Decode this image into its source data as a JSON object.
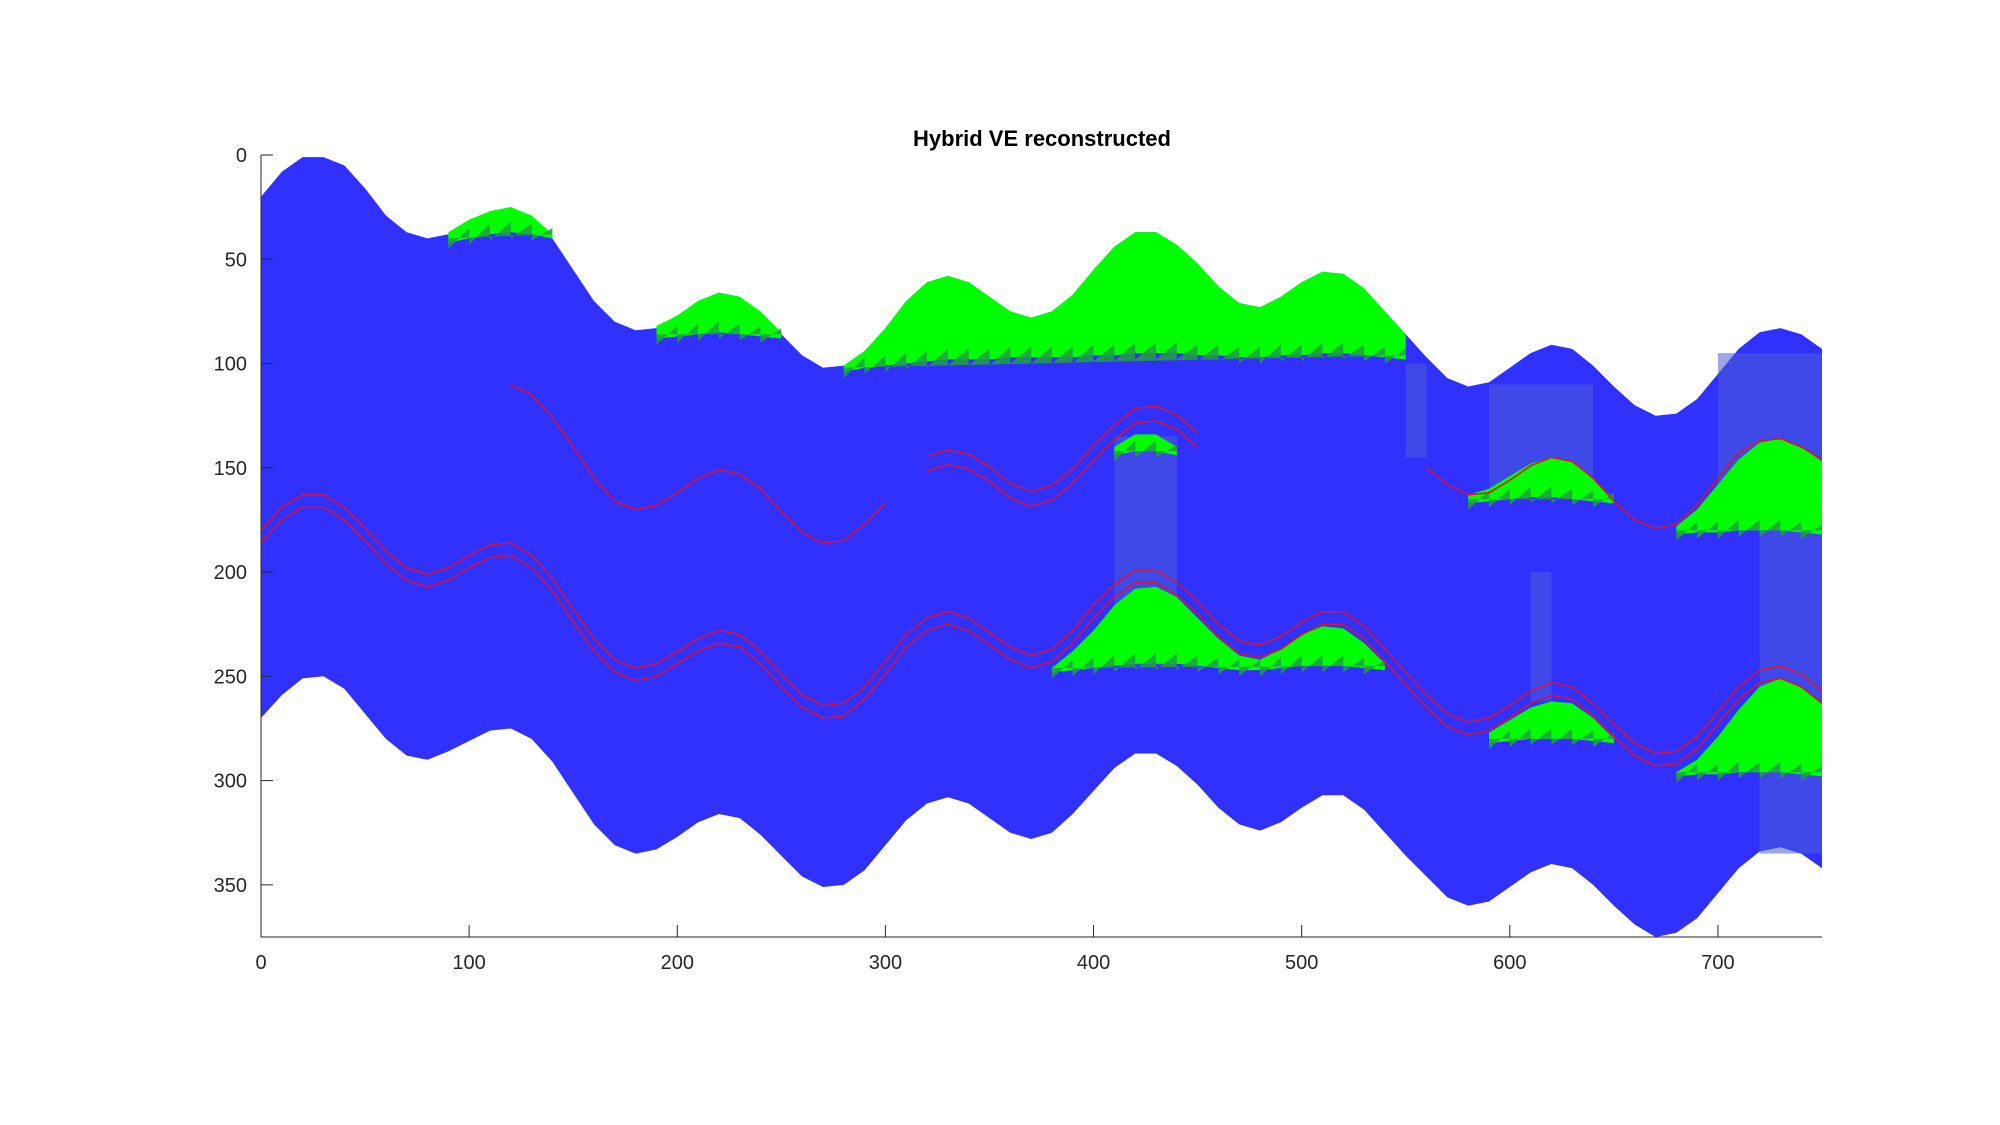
{
  "chart_data": {
    "type": "area",
    "title": "Hybrid VE reconstructed",
    "xlabel": "",
    "ylabel": "",
    "xlim": [
      0,
      750
    ],
    "ylim": [
      0,
      375
    ],
    "y_reversed": true,
    "x_ticks": [
      0,
      100,
      200,
      300,
      400,
      500,
      600,
      700
    ],
    "y_ticks": [
      0,
      50,
      100,
      150,
      200,
      250,
      300,
      350
    ],
    "grid": false,
    "colors": {
      "domain": "#3030ff",
      "plume": "#00ff00",
      "plume_edge": "#20a040",
      "column_overlay": "#4a5fd6",
      "horizon_line": "#e01030",
      "axes": "#262626"
    },
    "x": [
      0,
      10,
      20,
      30,
      40,
      50,
      60,
      70,
      80,
      90,
      100,
      110,
      120,
      130,
      140,
      150,
      160,
      170,
      180,
      190,
      200,
      210,
      220,
      230,
      240,
      250,
      260,
      270,
      280,
      290,
      300,
      310,
      320,
      330,
      340,
      350,
      360,
      370,
      380,
      390,
      400,
      410,
      420,
      430,
      440,
      450,
      460,
      470,
      480,
      490,
      500,
      510,
      520,
      530,
      540,
      550,
      560,
      570,
      580,
      590,
      600,
      610,
      620,
      630,
      640,
      650,
      660,
      670,
      680,
      690,
      700,
      710,
      720,
      730,
      740,
      750
    ],
    "top_surface": [
      20,
      8,
      1,
      1,
      5,
      16,
      29,
      37,
      40,
      38,
      33,
      27,
      25,
      30,
      40,
      55,
      70,
      80,
      84,
      83,
      77,
      70,
      66,
      68,
      76,
      86,
      96,
      102,
      101,
      94,
      83,
      70,
      61,
      58,
      61,
      68,
      75,
      78,
      75,
      67,
      55,
      44,
      37,
      37,
      43,
      52,
      63,
      71,
      73,
      68,
      61,
      56,
      57,
      64,
      75,
      86,
      97,
      107,
      111,
      109,
      102,
      95,
      91,
      93,
      101,
      111,
      120,
      125,
      124,
      117,
      105,
      93,
      85,
      83,
      86,
      93
    ],
    "bottom_surface": [
      270,
      259,
      251,
      250,
      256,
      268,
      280,
      288,
      290,
      286,
      281,
      276,
      275,
      280,
      291,
      306,
      321,
      331,
      335,
      333,
      327,
      320,
      316,
      318,
      326,
      336,
      346,
      351,
      350,
      343,
      331,
      319,
      311,
      308,
      311,
      318,
      325,
      328,
      325,
      316,
      305,
      294,
      287,
      287,
      293,
      302,
      313,
      321,
      324,
      320,
      313,
      307,
      307,
      314,
      325,
      336,
      346,
      356,
      360,
      358,
      351,
      344,
      340,
      342,
      350,
      360,
      369,
      375,
      373,
      366,
      354,
      342,
      334,
      332,
      335,
      342
    ],
    "plumes": [
      {
        "x": [
          90,
          100,
          110,
          120,
          130,
          140
        ],
        "top": [
          37,
          31,
          27,
          25,
          29,
          38
        ],
        "bottom": [
          42,
          40,
          38,
          37,
          38,
          40
        ]
      },
      {
        "x": [
          190,
          200,
          210,
          220,
          230,
          240,
          250
        ],
        "top": [
          82,
          77,
          70,
          66,
          68,
          75,
          85
        ],
        "bottom": [
          88,
          87,
          86,
          85,
          86,
          87,
          88
        ]
      },
      {
        "x": [
          280,
          290,
          300,
          310,
          320,
          330,
          340,
          350,
          360,
          370,
          380,
          390,
          400,
          410,
          420,
          430,
          440,
          450,
          460,
          470,
          480,
          490,
          500,
          510,
          520,
          530,
          540,
          550
        ],
        "top": [
          101,
          94,
          83,
          70,
          61,
          58,
          61,
          68,
          75,
          78,
          75,
          67,
          55,
          44,
          37,
          37,
          43,
          52,
          63,
          71,
          73,
          68,
          61,
          56,
          57,
          64,
          75,
          86
        ],
        "bottom": [
          104,
          102,
          101,
          100,
          99,
          98,
          98,
          98,
          97,
          97,
          97,
          97,
          96,
          96,
          95,
          95,
          95,
          96,
          96,
          97,
          97,
          96,
          96,
          95,
          95,
          96,
          97,
          98
        ]
      },
      {
        "x": [
          410,
          420,
          430,
          440
        ],
        "top": [
          140,
          134,
          134,
          140
        ],
        "bottom": [
          144,
          142,
          142,
          144
        ]
      },
      {
        "x": [
          580,
          590,
          600,
          610,
          620,
          630,
          640,
          650
        ],
        "top": [
          163,
          160,
          154,
          148,
          145,
          147,
          155,
          165
        ],
        "bottom": [
          167,
          166,
          165,
          164,
          164,
          165,
          166,
          167
        ]
      },
      {
        "x": [
          680,
          690,
          700,
          710,
          720,
          730,
          740,
          750
        ],
        "top": [
          178,
          170,
          158,
          146,
          138,
          136,
          140,
          147
        ],
        "bottom": [
          182,
          181,
          181,
          180,
          180,
          180,
          181,
          182
        ]
      },
      {
        "x": [
          380,
          390,
          400,
          410,
          420,
          430,
          440,
          450,
          460,
          470,
          480,
          490,
          500,
          510,
          520,
          530,
          540
        ],
        "top": [
          246,
          238,
          228,
          216,
          208,
          207,
          212,
          222,
          232,
          240,
          242,
          237,
          230,
          226,
          227,
          234,
          244
        ],
        "bottom": [
          248,
          247,
          246,
          245,
          244,
          244,
          244,
          245,
          246,
          247,
          247,
          246,
          245,
          245,
          245,
          246,
          247
        ]
      },
      {
        "x": [
          590,
          600,
          610,
          620,
          630,
          640,
          650
        ],
        "top": [
          277,
          271,
          265,
          262,
          263,
          270,
          280
        ],
        "bottom": [
          282,
          281,
          280,
          280,
          280,
          281,
          282
        ]
      },
      {
        "x": [
          680,
          690,
          700,
          710,
          720,
          730,
          740,
          750
        ],
        "top": [
          296,
          290,
          279,
          266,
          255,
          251,
          255,
          263
        ],
        "bottom": [
          298,
          297,
          297,
          296,
          296,
          296,
          297,
          298
        ]
      }
    ],
    "columns": [
      {
        "x0": 550,
        "x1": 560,
        "y0": 100,
        "y1": 145
      },
      {
        "x0": 410,
        "x1": 440,
        "y0": 135,
        "y1": 245
      },
      {
        "x0": 590,
        "x1": 640,
        "y0": 110,
        "y1": 160
      },
      {
        "x0": 610,
        "x1": 620,
        "y0": 200,
        "y1": 262
      },
      {
        "x0": 700,
        "x1": 750,
        "y0": 95,
        "y1": 180
      },
      {
        "x0": 720,
        "x1": 750,
        "y0": 180,
        "y1": 335
      }
    ],
    "horizon_lines": [
      {
        "x": [
          120,
          130,
          140,
          150,
          160,
          170,
          180,
          190,
          200,
          210,
          220,
          230,
          240,
          250,
          260,
          270,
          280,
          290,
          300
        ],
        "y": [
          110,
          115,
          126,
          140,
          155,
          166,
          170,
          168,
          162,
          155,
          151,
          153,
          160,
          171,
          181,
          186,
          185,
          177,
          167
        ]
      },
      {
        "x": [
          320,
          330,
          340,
          350,
          360,
          370,
          380,
          390,
          400,
          410,
          420,
          430,
          440,
          450
        ],
        "y": [
          148,
          145,
          147,
          153,
          161,
          165,
          162,
          154,
          143,
          133,
          125,
          124,
          128,
          137
        ],
        "double": true,
        "gap": 7
      },
      {
        "x": [
          0,
          10,
          20,
          30,
          40,
          50,
          60,
          70,
          80,
          90,
          100,
          110,
          120,
          130,
          140,
          150,
          160,
          170,
          180,
          190,
          200,
          210,
          220,
          230,
          240,
          250,
          260,
          270,
          280,
          290,
          300,
          310,
          320,
          330,
          340,
          350,
          360,
          370,
          380,
          390,
          400,
          410,
          420,
          430,
          440,
          450,
          460,
          470,
          480,
          490,
          500,
          510,
          520,
          530,
          540,
          550,
          560,
          570,
          580,
          590,
          600,
          610,
          620,
          630,
          640,
          650,
          660,
          670,
          680,
          690,
          700,
          710,
          720,
          730,
          740,
          750
        ],
        "y": [
          183,
          172,
          166,
          166,
          172,
          182,
          193,
          201,
          204,
          201,
          195,
          190,
          189,
          195,
          206,
          221,
          235,
          245,
          249,
          247,
          241,
          235,
          231,
          233,
          241,
          252,
          262,
          267,
          266,
          258,
          246,
          233,
          225,
          222,
          225,
          232,
          239,
          243,
          240,
          231,
          219,
          209,
          202,
          202,
          208,
          217,
          228,
          236,
          238,
          234,
          227,
          222,
          222,
          229,
          240,
          251,
          262,
          271,
          275,
          273,
          267,
          260,
          256,
          258,
          266,
          276,
          285,
          290,
          289,
          282,
          270,
          258,
          250,
          248,
          252,
          260
        ],
        "double": true,
        "gap": 6
      },
      {
        "x": [
          560,
          570,
          580,
          590,
          600,
          610,
          620,
          630,
          640,
          650,
          660,
          670,
          680,
          690,
          700,
          710,
          720,
          730,
          740,
          750
        ],
        "y": [
          150,
          158,
          163,
          162,
          156,
          149,
          145,
          147,
          155,
          166,
          175,
          179,
          177,
          168,
          155,
          143,
          137,
          136,
          140,
          146
        ]
      }
    ]
  }
}
